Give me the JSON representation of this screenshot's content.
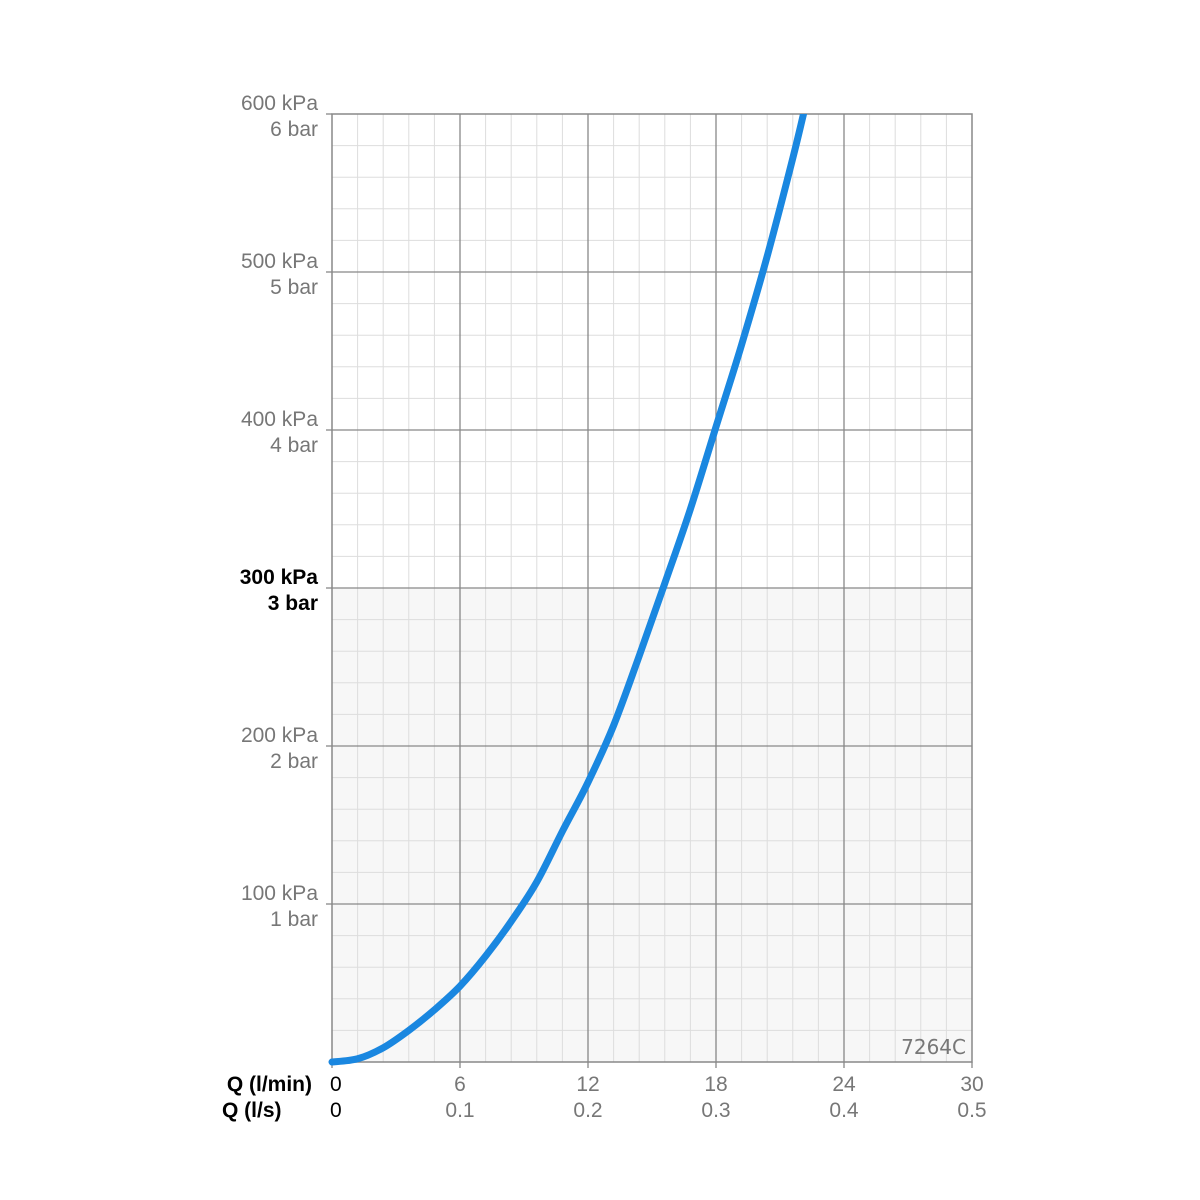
{
  "chart_data": {
    "type": "line",
    "title": "",
    "model_code": "7264C",
    "x_axes": [
      {
        "title": "Q (l/min)",
        "ticks": [
          0,
          6,
          12,
          18,
          24,
          30
        ],
        "tick_labels": [
          "0",
          "6",
          "12",
          "18",
          "24",
          "30"
        ],
        "range": [
          0,
          30
        ]
      },
      {
        "title": "Q (l/s)",
        "ticks": [
          0,
          6,
          12,
          18,
          24,
          30
        ],
        "tick_labels": [
          "0",
          "0.1",
          "0.2",
          "0.3",
          "0.4",
          "0.5"
        ],
        "range": [
          0,
          0.5
        ]
      }
    ],
    "y_axis": {
      "range": [
        0,
        600
      ],
      "unit": "kPa",
      "ticks": [
        {
          "value": 600,
          "kpa": "600 kPa",
          "bar": "6 bar",
          "bold": false
        },
        {
          "value": 500,
          "kpa": "500 kPa",
          "bar": "5 bar",
          "bold": false
        },
        {
          "value": 400,
          "kpa": "400 kPa",
          "bar": "4 bar",
          "bold": false
        },
        {
          "value": 300,
          "kpa": "300 kPa",
          "bar": "3 bar",
          "bold": true
        },
        {
          "value": 200,
          "kpa": "200 kPa",
          "bar": "2 bar",
          "bold": false
        },
        {
          "value": 100,
          "kpa": "100 kPa",
          "bar": "1 bar",
          "bold": false
        }
      ]
    },
    "grid": {
      "major_x_step": 6,
      "minor_x_step": 1.2,
      "major_y_step": 100,
      "minor_y_step": 20,
      "shaded_below": 300
    },
    "series": [
      {
        "color": "#1a87e0",
        "x": [
          0,
          1.2,
          2.4,
          3.6,
          4.8,
          6,
          7.2,
          8.4,
          9.6,
          10.8,
          12,
          13.2,
          14.4,
          15.6,
          16.8,
          18,
          19.2,
          20.4,
          21.6,
          22.1
        ],
        "y": [
          0,
          2,
          9,
          20,
          33,
          48,
          67,
          89,
          114,
          146,
          177,
          213,
          257,
          303,
          350,
          402,
          454,
          510,
          572,
          600
        ]
      }
    ],
    "colors": {
      "curve": "#1a87e0",
      "major_grid": "#888888",
      "minor_grid": "#dddddd",
      "shade": "#f7f7f7",
      "frame": "#888888"
    }
  }
}
